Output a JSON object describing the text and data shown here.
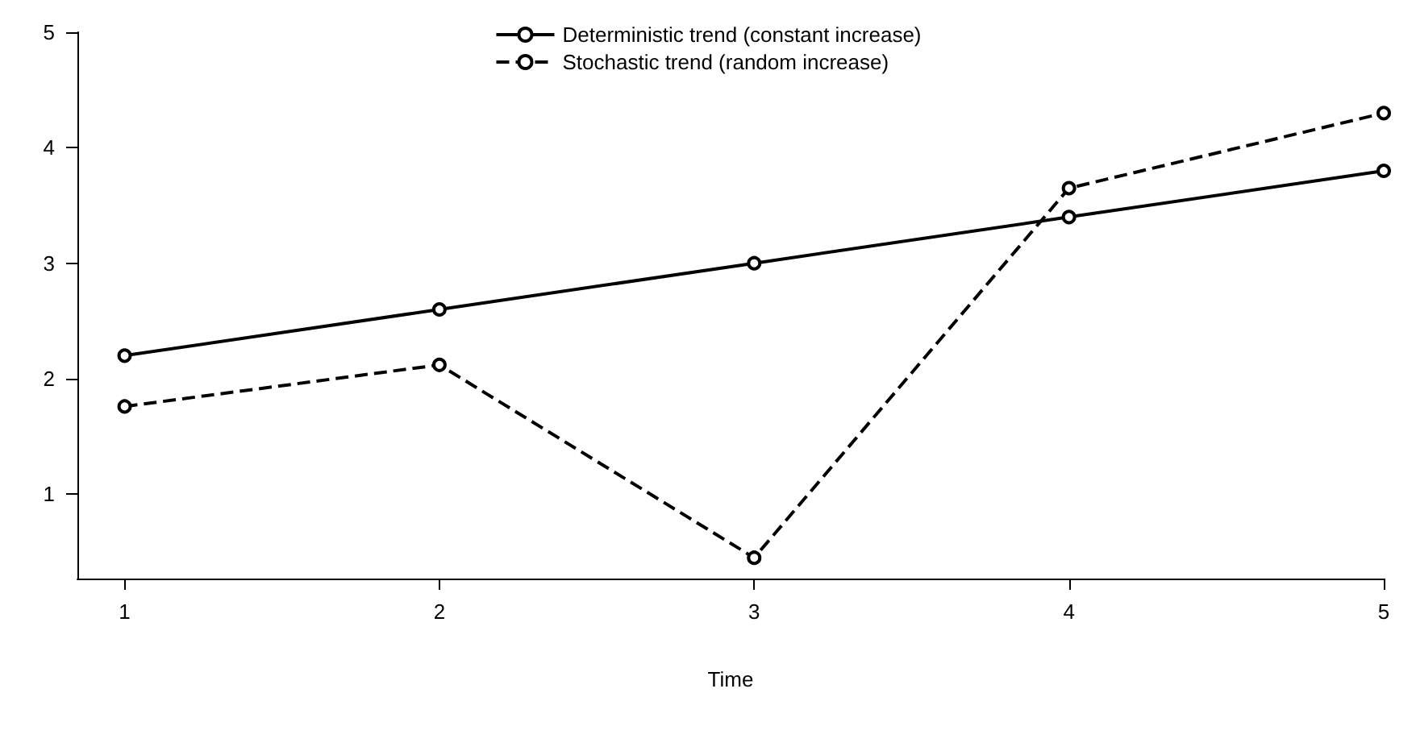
{
  "chart_data": {
    "type": "line",
    "xlabel": "Time",
    "x": [
      1,
      2,
      3,
      4,
      5
    ],
    "xlim": [
      0.85,
      5
    ],
    "xticks": [
      1,
      2,
      3,
      4,
      5
    ],
    "ylim": [
      0.27,
      5
    ],
    "yticks": [
      1,
      2,
      3,
      4,
      5
    ],
    "grid": false,
    "legend": "top",
    "marker": "circle",
    "series": [
      {
        "name": "Deterministic trend (constant increase)",
        "color": "#000000",
        "line_style": "solid",
        "values": [
          2.2,
          2.6,
          3.0,
          3.4,
          3.8
        ]
      },
      {
        "name": "Stochastic trend (random increase)",
        "color": "#000000",
        "line_style": "dashed",
        "values": [
          1.76,
          2.12,
          0.45,
          3.65,
          4.3
        ]
      }
    ]
  }
}
